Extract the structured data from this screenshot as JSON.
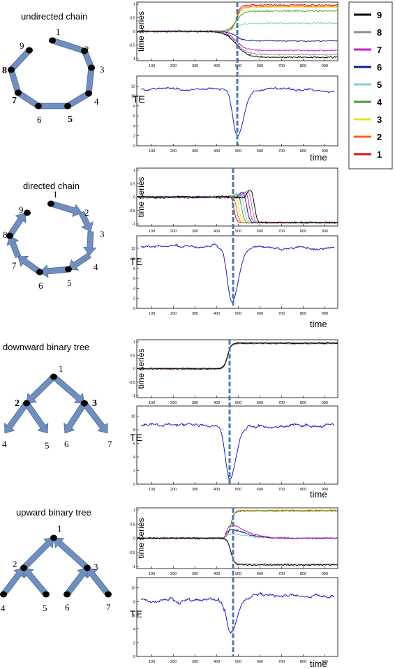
{
  "chart_data": [
    {
      "type": "line",
      "panel": "undirected chain",
      "diagram_title": "undirected chain",
      "diagram_node_labels": [
        "1",
        "2",
        "3",
        "4",
        "5",
        "6",
        "7",
        "8",
        "9"
      ],
      "top": {
        "ylabel": "time series",
        "yticks": [
          "1",
          "0.5",
          "0",
          "-0.5",
          "-1"
        ],
        "ylim": [
          -1,
          1
        ]
      },
      "bottom": {
        "ylabel": "TE",
        "yticks": [
          "12",
          "10",
          "8",
          "6",
          "4",
          "2",
          "0"
        ],
        "ylim": [
          0,
          14
        ]
      },
      "x_ticks": [
        "100",
        "200",
        "300",
        "400",
        "500",
        "600",
        "700",
        "800",
        "900"
      ],
      "xlim": [
        30,
        960
      ],
      "xlabel": "time",
      "transition": 460,
      "final_levels": [
        -0.95,
        -0.85,
        -0.7,
        -0.35,
        0.3,
        0.75,
        0.88,
        0.92,
        0.97
      ],
      "te": {
        "baseline": 11.5,
        "dip_min": 2.3,
        "dip_time": 495,
        "recovery": 11.2
      }
    },
    {
      "type": "line",
      "panel": "directed chain",
      "diagram_title": "directed chain",
      "diagram_node_labels": [
        "1",
        "2",
        "3",
        "4",
        "5",
        "6",
        "7",
        "8",
        "9"
      ],
      "top": {
        "ylabel": "time series",
        "yticks": [
          "1",
          "0.5",
          "0",
          "-0.5",
          "-1"
        ],
        "ylim": [
          -1,
          1
        ]
      },
      "bottom": {
        "ylabel": "TE",
        "yticks": [
          "12",
          "10",
          "8",
          "6",
          "4",
          "2",
          "0"
        ],
        "ylim": [
          0,
          14.5
        ]
      },
      "x_ticks": [
        "100",
        "200",
        "300",
        "400",
        "500",
        "600",
        "700",
        "800",
        "900"
      ],
      "xlim": [
        30,
        960
      ],
      "xlabel": "time",
      "transition": 435,
      "final_levels": [
        -0.95,
        -0.95,
        -0.95,
        -0.95,
        -0.95,
        -0.95,
        -0.95,
        -0.95,
        -0.95
      ],
      "te": {
        "baseline": 12.3,
        "dip_min": 1.5,
        "dip_time": 470,
        "recovery": 12.0
      }
    },
    {
      "type": "line",
      "panel": "downward binary tree",
      "diagram_title": "downward binary  tree",
      "diagram_node_labels": [
        "1",
        "2",
        "3",
        "4",
        "5",
        "6",
        "7"
      ],
      "top": {
        "ylabel": "time series",
        "yticks": [
          "1",
          "0.5",
          "0",
          "-0.5",
          "-1"
        ],
        "ylim": [
          -1,
          1
        ]
      },
      "bottom": {
        "ylabel": "TE",
        "yticks": [
          "10",
          "8",
          "6",
          "4",
          "2",
          "0"
        ],
        "ylim": [
          0,
          11.5
        ]
      },
      "x_ticks": [
        "100",
        "200",
        "300",
        "400",
        "500",
        "600",
        "700",
        "800",
        "900"
      ],
      "xlim": [
        30,
        960
      ],
      "xlabel": "time",
      "transition": 420,
      "final_levels": [
        0.95,
        0.95,
        0.95,
        0.95,
        0.95,
        0.95,
        0.95,
        0.95,
        0.95
      ],
      "te": {
        "baseline": 8.6,
        "dip_min": 0.6,
        "dip_time": 460,
        "recovery": 8.7
      }
    },
    {
      "type": "line",
      "panel": "upward binary tree",
      "diagram_title": "upward binary tree",
      "diagram_node_labels": [
        "1",
        "2",
        "3",
        "4",
        "5",
        "6",
        "7"
      ],
      "top": {
        "ylabel": "time series",
        "yticks": [
          "1",
          "0.5",
          "0",
          "-0.5",
          "-1"
        ],
        "ylim": [
          -1,
          1
        ]
      },
      "bottom": {
        "ylabel": "TE",
        "yticks": [
          "10",
          "8",
          "6",
          "4",
          "2",
          "0"
        ],
        "ylim": [
          0,
          11.5
        ]
      },
      "x_ticks": [
        "100",
        "200",
        "300",
        "400",
        "500",
        "600",
        "700",
        "800",
        "900"
      ],
      "xlim": [
        30,
        960
      ],
      "xlabel": "time",
      "transition": 435,
      "final_levels": [
        -0.95,
        -0.92,
        0.05,
        0.02,
        0.0,
        0.97,
        0.96,
        0.98,
        0.97
      ],
      "te": {
        "baseline": 8.3,
        "dip_min": 2.8,
        "dip_time": 465,
        "recovery": 9.0
      }
    }
  ],
  "legend": {
    "entries": [
      "9",
      "8",
      "7",
      "6",
      "5",
      "4",
      "3",
      "2",
      "1"
    ],
    "colors": [
      "#000000",
      "#8c8c8c",
      "#c020c0",
      "#1a1a8c",
      "#7fd0d0",
      "#40a030",
      "#f0e020",
      "#f06020",
      "#e01010"
    ]
  },
  "colors": {
    "arrow": "#6e8fbf",
    "arrow_edge": "#4a6a9a",
    "node": "#000000",
    "te_line": "#1a1ad0",
    "dashed": "#4a7ab0"
  }
}
